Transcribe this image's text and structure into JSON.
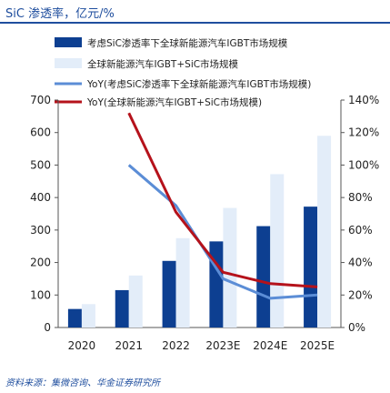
{
  "header": {
    "title": "SiC 渗透率，亿元/%"
  },
  "footer": {
    "source": "资料来源：集微咨询、华金证券研究所"
  },
  "chart_data": {
    "type": "bar",
    "categories": [
      "2020",
      "2021",
      "2022",
      "2023E",
      "2024E",
      "2025E"
    ],
    "series": [
      {
        "name": "考虑SiC渗透率下全球新能源汽车IGBT市场规模",
        "kind": "bar",
        "axis": "left",
        "color": "#0d3f91",
        "values": [
          57,
          115,
          205,
          265,
          312,
          372
        ]
      },
      {
        "name": "全球新能源汽车IGBT+SiC市场规模",
        "kind": "bar",
        "axis": "left",
        "color": "#e3edf9",
        "values": [
          72,
          160,
          275,
          368,
          472,
          590
        ]
      },
      {
        "name": "YoY(考虑SiC渗透率下全球新能源汽车IGBT市场规模)",
        "kind": "line",
        "axis": "right",
        "color": "#5b8dd6",
        "values": [
          null,
          100,
          75,
          30,
          18,
          20
        ]
      },
      {
        "name": "YoY(全球新能源汽车IGBT+SiC市场规模)",
        "kind": "line",
        "axis": "right",
        "color": "#b5121b",
        "values": [
          null,
          132,
          71,
          34,
          27,
          25
        ]
      }
    ],
    "y_left": {
      "min": 0,
      "max": 700,
      "ticks": [
        "0",
        "100",
        "200",
        "300",
        "400",
        "500",
        "600",
        "700"
      ]
    },
    "y_right": {
      "min": 0,
      "max": 140,
      "ticks": [
        "0%",
        "20%",
        "40%",
        "60%",
        "80%",
        "100%",
        "120%",
        "140%"
      ]
    },
    "legend_position": "top",
    "grid": false
  }
}
